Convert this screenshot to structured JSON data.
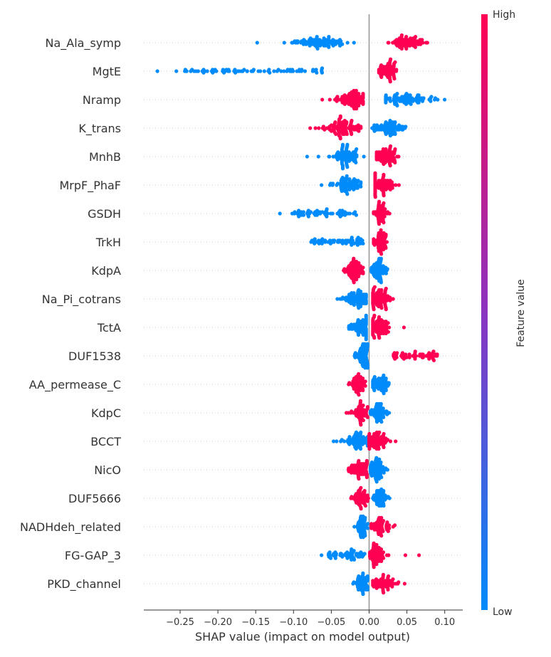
{
  "chart_data": {
    "type": "scatter",
    "subtype": "shap-beeswarm-summary",
    "title": "",
    "xlabel": "SHAP value (impact on model output)",
    "ylabel": "",
    "xlim": [
      -0.297,
      0.126
    ],
    "xticks": [
      -0.25,
      -0.2,
      -0.15,
      -0.1,
      -0.05,
      0.0,
      0.05,
      0.1
    ],
    "xtick_labels": [
      "−0.25",
      "−0.20",
      "−0.15",
      "−0.10",
      "−0.05",
      "0.00",
      "0.05",
      "0.10"
    ],
    "grid": false,
    "colorbar": {
      "label": "Feature value",
      "high_label": "High",
      "low_label": "Low",
      "high_color": "#ff0052",
      "low_color": "#008bfb"
    },
    "features": [
      {
        "name": "Na_Ala_symp",
        "clusters": [
          {
            "value": "low",
            "min": -0.148,
            "max": -0.02,
            "center": -0.065,
            "spread": 0.018,
            "outliers": [
              -0.148,
              -0.02
            ],
            "n": 90
          },
          {
            "value": "high",
            "min": 0.023,
            "max": 0.077,
            "center": 0.05,
            "spread": 0.012,
            "outliers": [],
            "n": 80
          }
        ]
      },
      {
        "name": "MgtE",
        "clusters": [
          {
            "value": "low",
            "min": -0.28,
            "max": -0.055,
            "center": -0.13,
            "spread": 0.05,
            "outliers": [
              -0.28,
              -0.255,
              -0.207,
              -0.192,
              -0.185
            ],
            "n": 70,
            "flat": true
          },
          {
            "value": "high",
            "min": 0.013,
            "max": 0.05,
            "center": 0.024,
            "spread": 0.008,
            "outliers": [],
            "n": 70
          }
        ]
      },
      {
        "name": "Nramp",
        "clusters": [
          {
            "value": "high",
            "min": -0.062,
            "max": -0.008,
            "center": -0.022,
            "spread": 0.01,
            "outliers": [
              -0.062
            ],
            "n": 90
          },
          {
            "value": "low",
            "min": 0.022,
            "max": 0.102,
            "center": 0.05,
            "spread": 0.018,
            "outliers": [],
            "n": 90
          }
        ]
      },
      {
        "name": "K_trans",
        "clusters": [
          {
            "value": "high",
            "min": -0.078,
            "max": -0.011,
            "center": -0.035,
            "spread": 0.012,
            "outliers": [
              -0.078
            ],
            "n": 95
          },
          {
            "value": "low",
            "min": 0.004,
            "max": 0.06,
            "center": 0.025,
            "spread": 0.01,
            "outliers": [],
            "n": 80
          }
        ]
      },
      {
        "name": "MnhB",
        "clusters": [
          {
            "value": "low",
            "min": -0.082,
            "max": -0.007,
            "center": -0.03,
            "spread": 0.011,
            "outliers": [
              -0.082,
              -0.067
            ],
            "n": 85
          },
          {
            "value": "high",
            "min": 0.01,
            "max": 0.054,
            "center": 0.02,
            "spread": 0.009,
            "outliers": [],
            "n": 80
          }
        ]
      },
      {
        "name": "MrpF_PhaF",
        "clusters": [
          {
            "value": "low",
            "min": -0.063,
            "max": -0.011,
            "center": -0.028,
            "spread": 0.009,
            "outliers": [
              -0.063
            ],
            "n": 75
          },
          {
            "value": "high",
            "min": 0.008,
            "max": 0.052,
            "center": 0.018,
            "spread": 0.009,
            "outliers": [],
            "n": 80
          }
        ]
      },
      {
        "name": "GSDH",
        "clusters": [
          {
            "value": "low",
            "min": -0.118,
            "max": -0.017,
            "center": -0.07,
            "spread": 0.02,
            "outliers": [
              -0.118,
              -0.017
            ],
            "n": 60,
            "flat": true
          },
          {
            "value": "high",
            "min": 0.006,
            "max": 0.027,
            "center": 0.015,
            "spread": 0.004,
            "outliers": [],
            "n": 55
          }
        ]
      },
      {
        "name": "TrkH",
        "clusters": [
          {
            "value": "low",
            "min": -0.09,
            "max": -0.008,
            "center": -0.043,
            "spread": 0.015,
            "outliers": [
              -0.008
            ],
            "n": 60,
            "flat": true
          },
          {
            "value": "high",
            "min": 0.006,
            "max": 0.033,
            "center": 0.014,
            "spread": 0.005,
            "outliers": [],
            "n": 60
          }
        ]
      },
      {
        "name": "KdpA",
        "clusters": [
          {
            "value": "high",
            "min": -0.053,
            "max": -0.008,
            "center": -0.02,
            "spread": 0.008,
            "outliers": [],
            "n": 75
          },
          {
            "value": "low",
            "min": 0.003,
            "max": 0.032,
            "center": 0.013,
            "spread": 0.006,
            "outliers": [],
            "n": 70
          }
        ]
      },
      {
        "name": "Na_Pi_cotrans",
        "clusters": [
          {
            "value": "low",
            "min": -0.042,
            "max": -0.004,
            "center": -0.015,
            "spread": 0.008,
            "outliers": [
              -0.042
            ],
            "n": 80
          },
          {
            "value": "high",
            "min": 0.005,
            "max": 0.04,
            "center": 0.013,
            "spread": 0.008,
            "outliers": [],
            "n": 80
          }
        ]
      },
      {
        "name": "TctA",
        "clusters": [
          {
            "value": "low",
            "min": -0.042,
            "max": -0.004,
            "center": -0.012,
            "spread": 0.008,
            "outliers": [],
            "n": 75
          },
          {
            "value": "high",
            "min": 0.005,
            "max": 0.046,
            "center": 0.013,
            "spread": 0.007,
            "outliers": [
              0.046
            ],
            "n": 75
          }
        ]
      },
      {
        "name": "DUF1538",
        "clusters": [
          {
            "value": "low",
            "min": -0.026,
            "max": -0.002,
            "center": -0.008,
            "spread": 0.005,
            "outliers": [],
            "n": 70
          },
          {
            "value": "high",
            "min": 0.018,
            "max": 0.09,
            "center": 0.045,
            "spread": 0.018,
            "outliers": [
              0.09
            ],
            "n": 55,
            "flat": true
          }
        ]
      },
      {
        "name": "AA_permease_C",
        "clusters": [
          {
            "value": "high",
            "min": -0.027,
            "max": -0.005,
            "center": -0.015,
            "spread": 0.005,
            "outliers": [],
            "n": 60
          },
          {
            "value": "low",
            "min": 0.005,
            "max": 0.03,
            "center": 0.016,
            "spread": 0.006,
            "outliers": [],
            "n": 60
          }
        ]
      },
      {
        "name": "KdpC",
        "clusters": [
          {
            "value": "high",
            "min": -0.03,
            "max": -0.002,
            "center": -0.013,
            "spread": 0.006,
            "outliers": [],
            "n": 60
          },
          {
            "value": "low",
            "min": 0.002,
            "max": 0.03,
            "center": 0.013,
            "spread": 0.006,
            "outliers": [],
            "n": 60
          }
        ]
      },
      {
        "name": "BCCT",
        "clusters": [
          {
            "value": "low",
            "min": -0.047,
            "max": -0.002,
            "center": -0.015,
            "spread": 0.008,
            "outliers": [
              -0.047,
              -0.043
            ],
            "n": 70
          },
          {
            "value": "high",
            "min": 0.0,
            "max": 0.035,
            "center": 0.01,
            "spread": 0.007,
            "outliers": [
              0.035
            ],
            "n": 75
          }
        ]
      },
      {
        "name": "NicO",
        "clusters": [
          {
            "value": "high",
            "min": -0.036,
            "max": -0.003,
            "center": -0.012,
            "spread": 0.007,
            "outliers": [],
            "n": 70
          },
          {
            "value": "low",
            "min": 0.002,
            "max": 0.032,
            "center": 0.01,
            "spread": 0.006,
            "outliers": [],
            "n": 70
          }
        ]
      },
      {
        "name": "DUF5666",
        "clusters": [
          {
            "value": "high",
            "min": -0.029,
            "max": -0.001,
            "center": -0.012,
            "spread": 0.005,
            "outliers": [],
            "n": 60
          },
          {
            "value": "low",
            "min": 0.003,
            "max": 0.027,
            "center": 0.014,
            "spread": 0.005,
            "outliers": [],
            "n": 55
          }
        ]
      },
      {
        "name": "NADHdeh_related",
        "clusters": [
          {
            "value": "low",
            "min": -0.021,
            "max": -0.002,
            "center": -0.01,
            "spread": 0.004,
            "outliers": [],
            "n": 55
          },
          {
            "value": "high",
            "min": 0.003,
            "max": 0.038,
            "center": 0.015,
            "spread": 0.007,
            "outliers": [],
            "n": 60
          }
        ]
      },
      {
        "name": "FG-GAP_3",
        "clusters": [
          {
            "value": "low",
            "min": -0.063,
            "max": -0.004,
            "center": -0.025,
            "spread": 0.012,
            "outliers": [
              -0.063
            ],
            "n": 60,
            "flat": true
          },
          {
            "value": "high",
            "min": 0.001,
            "max": 0.066,
            "center": 0.008,
            "spread": 0.006,
            "outliers": [
              0.048,
              0.066
            ],
            "n": 75
          }
        ]
      },
      {
        "name": "PKD_channel",
        "clusters": [
          {
            "value": "low",
            "min": -0.027,
            "max": -0.002,
            "center": -0.009,
            "spread": 0.005,
            "outliers": [],
            "n": 55
          },
          {
            "value": "high",
            "min": 0.005,
            "max": 0.047,
            "center": 0.018,
            "spread": 0.008,
            "outliers": [
              0.047
            ],
            "n": 65
          }
        ]
      }
    ]
  }
}
